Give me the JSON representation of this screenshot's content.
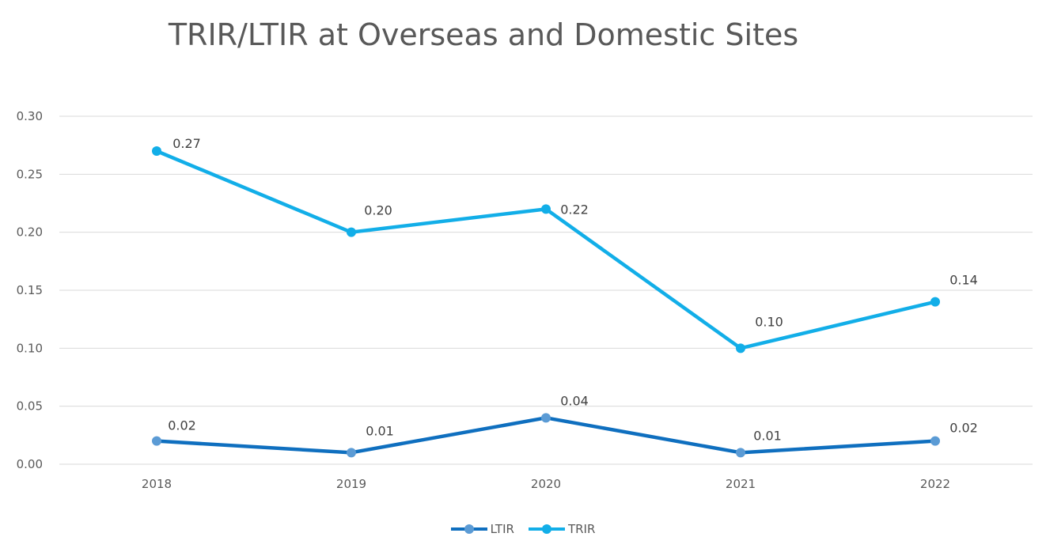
{
  "chart_data": {
    "type": "line",
    "title": "TRIR/LTIR at Overseas and Domestic Sites",
    "categories": [
      "2018",
      "2019",
      "2020",
      "2021",
      "2022"
    ],
    "series": [
      {
        "name": "LTIR",
        "values": [
          0.02,
          0.01,
          0.04,
          0.01,
          0.02
        ],
        "labels": [
          "0.02",
          "0.01",
          "0.04",
          "0.01",
          "0.02"
        ],
        "color": "#0F6FBF",
        "marker_color": "#5B9BD5"
      },
      {
        "name": "TRIR",
        "values": [
          0.27,
          0.2,
          0.22,
          0.1,
          0.14
        ],
        "labels": [
          "0.27",
          "0.20",
          "0.22",
          "0.10",
          "0.14"
        ],
        "color": "#12AEE8",
        "marker_color": "#12AEE8"
      }
    ],
    "ylim": [
      0,
      0.3
    ],
    "yticks": [
      "0.00",
      "0.05",
      "0.10",
      "0.15",
      "0.20",
      "0.25",
      "0.30"
    ],
    "grid": true,
    "legend": "bottom-center",
    "xlabel": "",
    "ylabel": ""
  }
}
